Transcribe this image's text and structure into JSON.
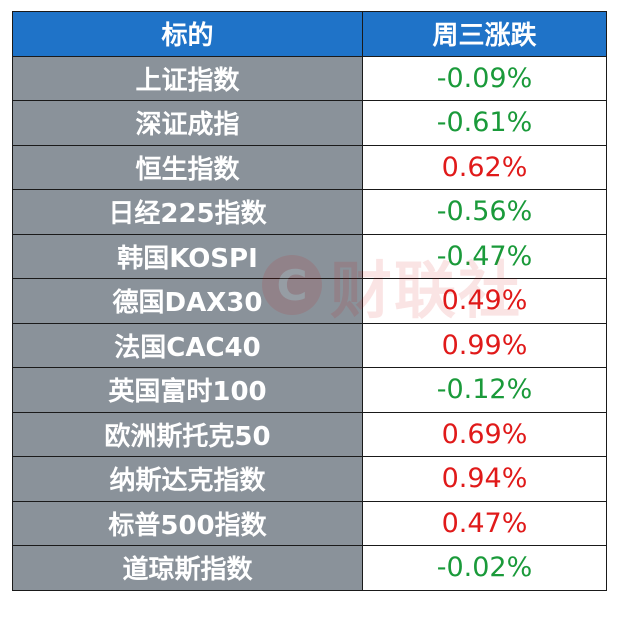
{
  "header": {
    "col1": "标的",
    "col2": "周三涨跌"
  },
  "colors": {
    "header_bg": "#1f73c8",
    "name_bg": "#8a929a",
    "up": "#e01a1a",
    "down": "#1a9a3a"
  },
  "rows": [
    {
      "name": "上证指数",
      "change": "-0.09%",
      "direction": "down"
    },
    {
      "name": "深证成指",
      "change": "-0.61%",
      "direction": "down"
    },
    {
      "name": "恒生指数",
      "change": "0.62%",
      "direction": "up"
    },
    {
      "name": "日经225指数",
      "change": "-0.56%",
      "direction": "down"
    },
    {
      "name": "韩国KOSPI",
      "change": "-0.47%",
      "direction": "down"
    },
    {
      "name": "德国DAX30",
      "change": "0.49%",
      "direction": "up"
    },
    {
      "name": "法国CAC40",
      "change": "0.99%",
      "direction": "up"
    },
    {
      "name": "英国富时100",
      "change": "-0.12%",
      "direction": "down"
    },
    {
      "name": "欧洲斯托克50",
      "change": "0.69%",
      "direction": "up"
    },
    {
      "name": "纳斯达克指数",
      "change": "0.94%",
      "direction": "up"
    },
    {
      "name": "标普500指数",
      "change": "0.47%",
      "direction": "up"
    },
    {
      "name": "道琼斯指数",
      "change": "-0.02%",
      "direction": "down"
    }
  ],
  "watermark": {
    "logo_glyph": "C",
    "text": "财联社"
  }
}
